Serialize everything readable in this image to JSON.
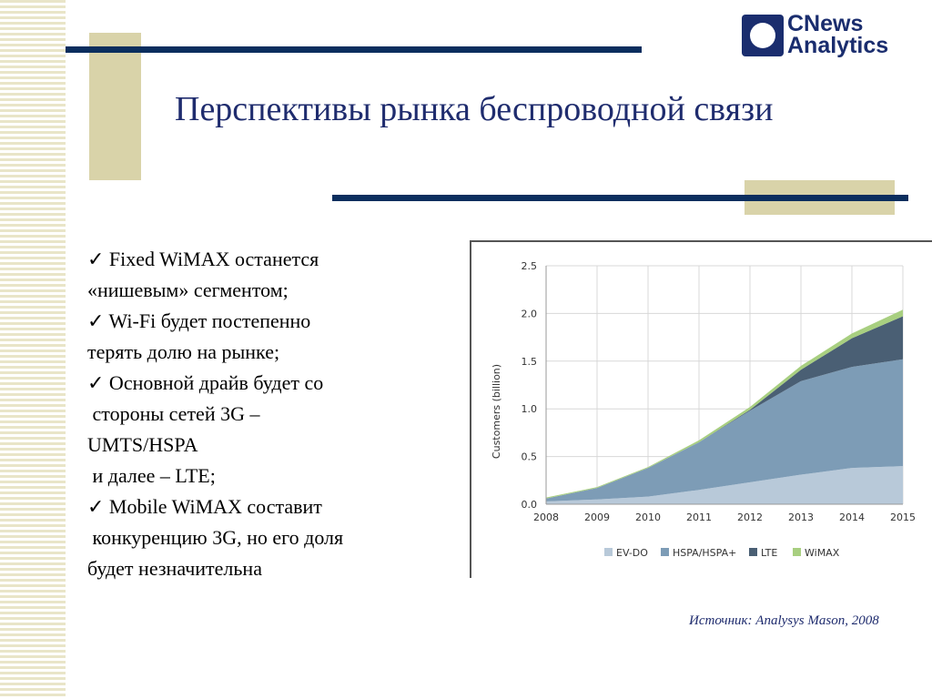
{
  "logo": {
    "line1": "CNews",
    "line2": "Analytics"
  },
  "title": "Перспективы рынка беспроводной связи",
  "bullets": [
    "✓ Fixed WiMAX останется",
    "«нишевым» сегментом;",
    "✓ Wi-Fi будет постепенно",
    "терять долю на рынке;",
    "✓ Основной драйв будет со",
    " стороны сетей 3G –",
    "UMTS/HSPA",
    " и далее – LTE;",
    "✓ Mobile WiMAX составит",
    " конкуренцию 3G, но его доля",
    "будет незначительна"
  ],
  "source": "Источник: Analysys Mason, 2008",
  "chart_data": {
    "type": "area",
    "stacked": true,
    "title": "",
    "xlabel": "",
    "ylabel": "Customers (billion)",
    "x": [
      "2008",
      "2009",
      "2010",
      "2011",
      "2012",
      "2013",
      "2014",
      "2015"
    ],
    "ylim": [
      0,
      2.5
    ],
    "yticks": [
      "0.0",
      "0.5",
      "1.0",
      "1.5",
      "2.0",
      "2.5"
    ],
    "grid": true,
    "legend": "bottom",
    "series": [
      {
        "name": "EV-DO",
        "color": "#b8c9d9",
        "values": [
          0.03,
          0.05,
          0.08,
          0.15,
          0.23,
          0.31,
          0.38,
          0.4
        ]
      },
      {
        "name": "HSPA/HSPA+",
        "color": "#7d9cb6",
        "values": [
          0.03,
          0.12,
          0.3,
          0.5,
          0.75,
          0.98,
          1.06,
          1.12
        ]
      },
      {
        "name": "LTE",
        "color": "#4a5f74",
        "values": [
          0,
          0,
          0,
          0,
          0.01,
          0.12,
          0.3,
          0.45
        ]
      },
      {
        "name": "WiMAX",
        "color": "#a8cf80",
        "values": [
          0.01,
          0.01,
          0.01,
          0.02,
          0.03,
          0.04,
          0.05,
          0.07
        ]
      }
    ]
  }
}
